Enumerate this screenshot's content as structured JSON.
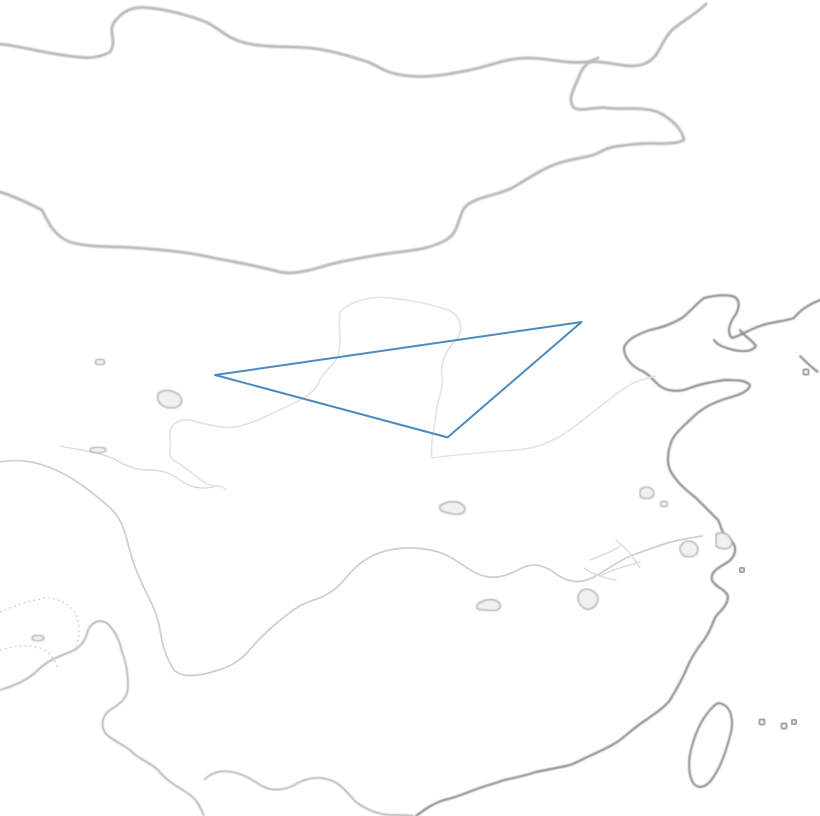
{
  "map": {
    "style": "grayscale-relief",
    "region": "north-and-east-china",
    "colors": {
      "background": "#ffffff",
      "route": "#4a8bc2"
    }
  },
  "route_polygon": {
    "vertices": [
      {
        "lon": 95.3,
        "lat": 37.6
      },
      {
        "lon": 116.1,
        "lat": 40.4
      },
      {
        "lon": 108.5,
        "lat": 34.3
      }
    ]
  }
}
